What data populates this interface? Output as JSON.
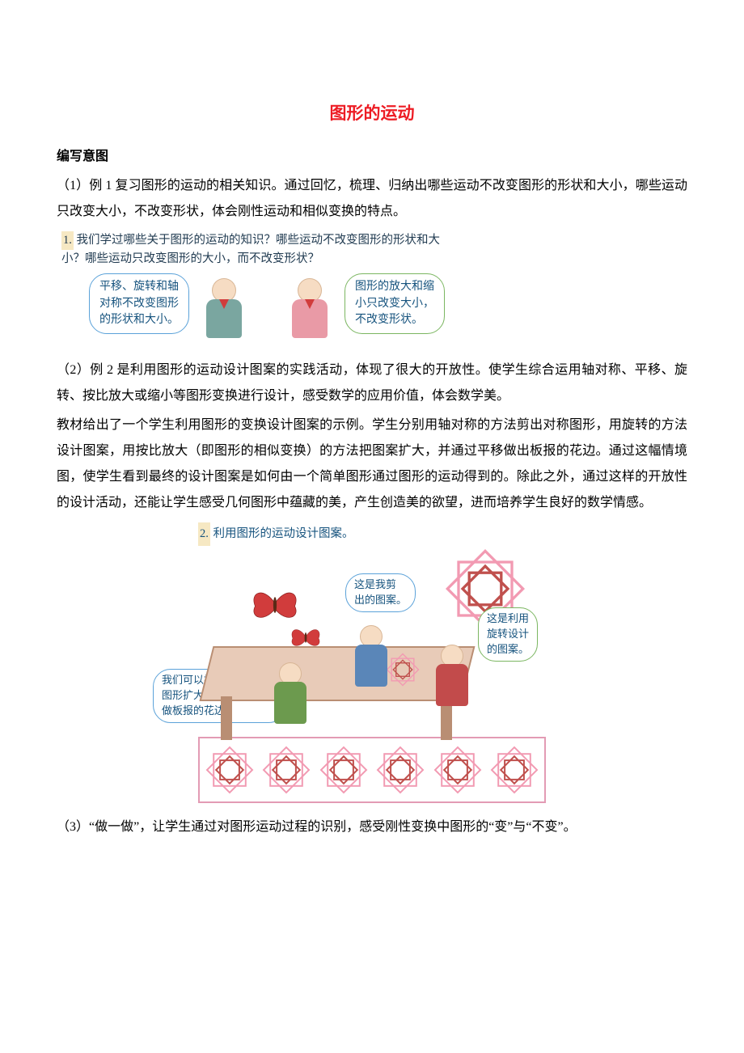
{
  "colors": {
    "title": "#ed1c24",
    "body_text": "#000000",
    "kai_text": "#223c52",
    "bubble_text": "#16537e",
    "bubble_border_blue": "#5ba2d9",
    "bubble_border_green": "#7bb661",
    "num_highlight_bg": "#f6e8c3",
    "table_top": "#e8cbb8",
    "table_border": "#b98e73",
    "scarf_red": "#d13c3c",
    "boy_shirt": "#7aa6a0",
    "girl_shirt": "#e99aa6",
    "star_outer": "#f29ab2",
    "star_inner": "#c0504d",
    "butterfly": "#d13c3c",
    "border_pink": "#e39bb4",
    "green_kid": "#6c9a4e",
    "blue_kid": "#5a86b8",
    "red_kid": "#c24b4b"
  },
  "title": "图形的运动",
  "heading_intent": "编写意图",
  "para1": "（1）例 1 复习图形的运动的相关知识。通过回忆，梳理、归纳出哪些运动不改变图形的形状和大小，哪些运动只改变大小，不改变形状，体会刚性运动和相似变换的特点。",
  "fig1": {
    "num": "1.",
    "question": "我们学过哪些关于图形的运动的知识？哪些运动不改变图形的形状和大\n小？哪些运动只改变图形的大小，而不改变形状？",
    "bubble_left": "平移、旋转和轴\n对称不改变图形\n的形状和大小。",
    "bubble_right": "图形的放大和缩\n小只改变大小，\n不改变形状。"
  },
  "para2": "（2）例 2 是利用图形的运动设计图案的实践活动，体现了很大的开放性。使学生综合运用轴对称、平移、旋转、按比放大或缩小等图形变换进行设计，感受数学的应用价值，体会数学美。",
  "para3": "教材给出了一个学生利用图形的变换设计图案的示例。学生分别用轴对称的方法剪出对称图形，用旋转的方法设计图案，用按比放大（即图形的相似变换）的方法把图案扩大，并通过平移做出板报的花边。通过这幅情境图，使学生看到最终的设计图案是如何由一个简单图形通过图形的运动得到的。除此之外，通过这样的开放性的设计活动，还能让学生感受几何图形中蕴藏的美，产生创造美的欲望，进而培养学生良好的数学情感。",
  "fig2": {
    "num": "2.",
    "caption": "利用图形的运动设计图案。",
    "bubble_girl": "这是我剪\n出的图案。",
    "bubble_boy_right": "这是利用\n旋转设计\n的图案。",
    "bubble_boy_left": "我们可以按 5 ∶ 1 将这个\n图形扩大，再利用平移\n做板报的花边。",
    "repeat_count": 6
  },
  "para4": "（3）“做一做”，让学生通过对图形运动过程的识别，感受刚性变换中图形的“变”与“不变”。",
  "typography": {
    "title_fontsize_pt": 16,
    "body_fontsize_pt": 12,
    "figure_fontsize_pt": 11,
    "line_height": 2.0,
    "body_font": "SimSun",
    "heading_font": "SimHei",
    "figure_font": "KaiTi"
  }
}
